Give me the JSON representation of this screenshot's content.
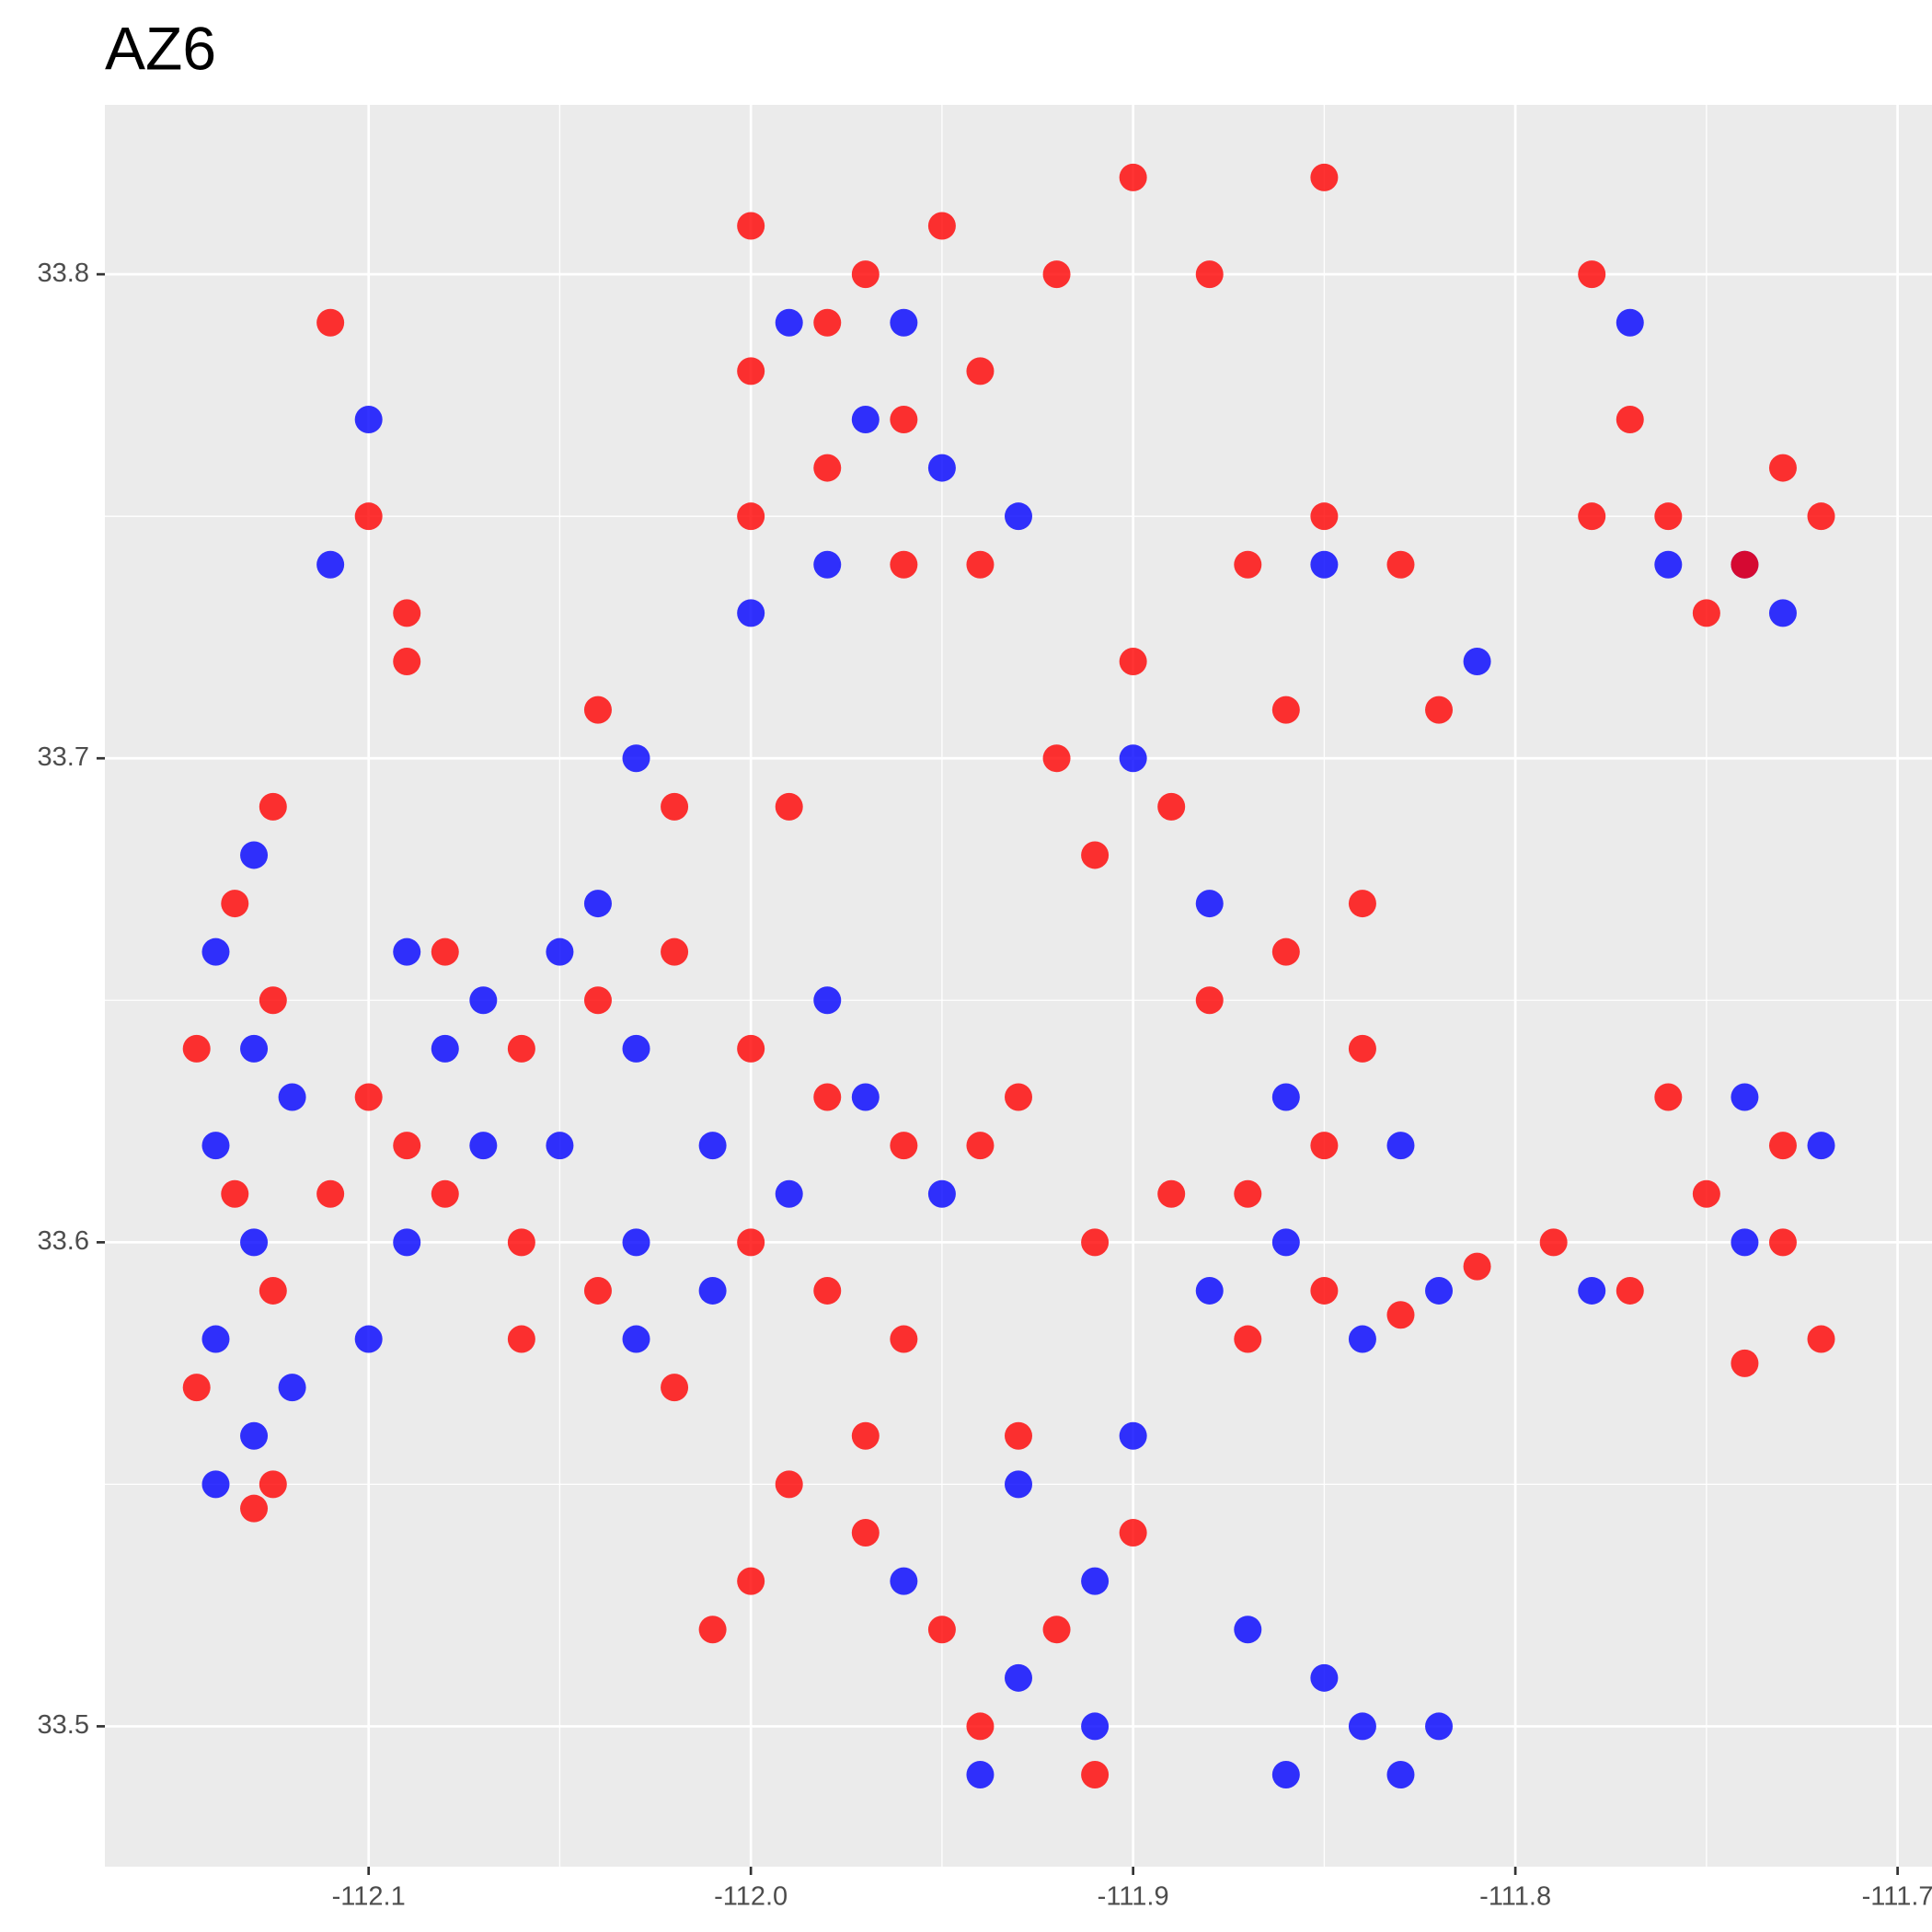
{
  "chart_data": {
    "type": "scatter",
    "title": "AZ6",
    "xlim": [
      -112.169,
      -111.691
    ],
    "ylim": [
      33.471,
      33.835
    ],
    "xticks": [
      -112.1,
      {
        "value": -112,
        "label": "-112.0"
      },
      -111.9,
      -111.8,
      -111.7
    ],
    "yticks": [
      33.5,
      33.6,
      33.7,
      33.8
    ],
    "grid": true,
    "series": [
      {
        "color": "#0000ff",
        "x": [
          -112.14,
          -112.13,
          -112.14,
          -112.13,
          -112.14,
          -112.13,
          -112.14,
          -112.13,
          -112.12,
          -112.12,
          -112.09,
          -112.07,
          -112.05,
          -112.03,
          -112.01,
          -112.03,
          -112.05,
          -112.07,
          -112.09,
          -112.1,
          -112.01,
          -111.99,
          -111.97,
          -111.95,
          -112.03,
          -111.98,
          -112.08,
          -112.04,
          -111.93,
          -111.91,
          -111.93,
          -111.91,
          -111.94,
          -111.9,
          -111.96,
          -111.88,
          -111.86,
          -111.84,
          -111.82,
          -111.78,
          -111.74,
          -111.72,
          -111.74,
          -111.86,
          -111.83,
          -111.99,
          -111.97,
          -111.95,
          -111.93,
          -111.98,
          -111.96,
          -112,
          -111.9,
          -111.88,
          -111.85,
          -111.81,
          -112.03,
          -112.1,
          -112.11,
          -111.85,
          -111.84,
          -111.83,
          -111.86,
          -111.82,
          -111.87,
          -111.77,
          -111.76,
          -111.74,
          -111.73
        ],
        "y": [
          33.55,
          33.56,
          33.58,
          33.6,
          33.62,
          33.64,
          33.66,
          33.68,
          33.57,
          33.63,
          33.66,
          33.65,
          33.66,
          33.64,
          33.62,
          33.6,
          33.62,
          33.62,
          33.6,
          33.58,
          33.59,
          33.61,
          33.63,
          33.61,
          33.58,
          33.65,
          33.64,
          33.67,
          33.55,
          33.53,
          33.51,
          33.5,
          33.49,
          33.56,
          33.53,
          33.59,
          33.6,
          33.58,
          33.59,
          33.59,
          33.6,
          33.62,
          33.63,
          33.63,
          33.62,
          33.79,
          33.77,
          33.76,
          33.75,
          33.74,
          33.79,
          33.73,
          33.7,
          33.67,
          33.74,
          33.72,
          33.7,
          33.77,
          33.74,
          33.51,
          33.5,
          33.49,
          33.49,
          33.5,
          33.52,
          33.79,
          33.74,
          33.74,
          33.73
        ]
      },
      {
        "color": "#ff0000",
        "x": [
          -112.145,
          -112.125,
          -112.135,
          -112.125,
          -112.135,
          -112.125,
          -112.145,
          -112.125,
          -112.13,
          -112.1,
          -112.08,
          -112.06,
          -112.04,
          -112.02,
          -112,
          -111.98,
          -111.96,
          -111.94,
          -111.93,
          -112.06,
          -112.08,
          -112.04,
          -112,
          -111.98,
          -111.96,
          -112.02,
          -112.11,
          -112.06,
          -112.09,
          -111.99,
          -111.97,
          -111.95,
          -111.97,
          -112,
          -112.01,
          -111.94,
          -111.92,
          -111.9,
          -111.93,
          -111.91,
          -111.91,
          -111.89,
          -111.87,
          -111.85,
          -111.83,
          -111.81,
          -111.79,
          -111.77,
          -111.75,
          -111.73,
          -111.72,
          -111.74,
          -111.76,
          -111.73,
          -111.85,
          -111.84,
          -111.87,
          -111.9,
          -111.89,
          -111.91,
          -111.88,
          -111.86,
          -111.84,
          -111.87,
          -111.85,
          -111.83,
          -111.82,
          -111.86,
          -111.92,
          -112.02,
          -111.99,
          -112.04,
          -112.09,
          -112.1,
          -112.11,
          -112.09,
          -112,
          -111.98,
          -111.96,
          -111.94,
          -111.92,
          -111.94,
          -111.96,
          -111.98,
          -111.95,
          -111.88,
          -112,
          -111.85,
          -111.9,
          -112,
          -111.97,
          -111.78,
          -111.77,
          -111.78,
          -111.76,
          -111.74,
          -111.72,
          -111.75,
          -111.73
        ],
        "y": [
          33.57,
          33.59,
          33.61,
          33.65,
          33.67,
          33.69,
          33.64,
          33.55,
          33.545,
          33.63,
          33.66,
          33.64,
          33.65,
          33.66,
          33.64,
          33.63,
          33.62,
          33.62,
          33.63,
          33.6,
          33.61,
          33.59,
          33.6,
          33.59,
          33.58,
          33.57,
          33.61,
          33.58,
          33.62,
          33.55,
          33.54,
          33.52,
          33.56,
          33.53,
          33.52,
          33.5,
          33.52,
          33.54,
          33.56,
          33.49,
          33.6,
          33.61,
          33.58,
          33.59,
          33.585,
          33.595,
          33.6,
          33.59,
          33.61,
          33.6,
          33.58,
          33.575,
          33.63,
          33.62,
          33.62,
          33.64,
          33.61,
          33.72,
          33.69,
          33.68,
          33.65,
          33.66,
          33.67,
          33.74,
          33.75,
          33.74,
          33.71,
          33.71,
          33.7,
          33.69,
          33.69,
          33.71,
          33.73,
          33.75,
          33.79,
          33.72,
          33.78,
          33.76,
          33.77,
          33.78,
          33.8,
          33.74,
          33.74,
          33.79,
          33.81,
          33.8,
          33.81,
          33.82,
          33.82,
          33.75,
          33.8,
          33.8,
          33.77,
          33.75,
          33.75,
          33.74,
          33.75,
          33.73,
          33.76
        ]
      }
    ]
  }
}
